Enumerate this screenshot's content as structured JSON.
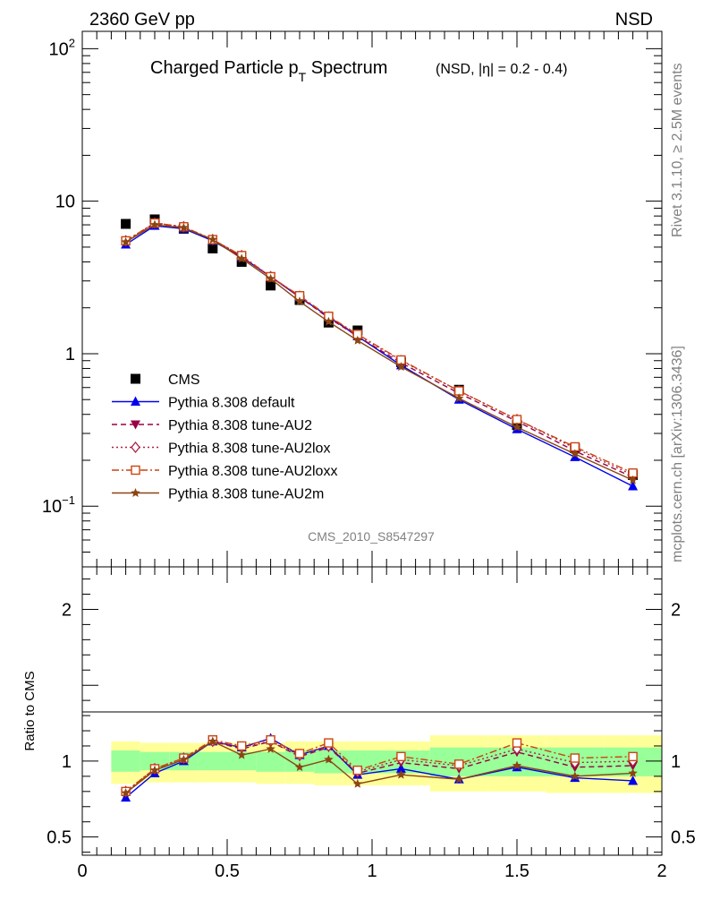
{
  "header": {
    "energy_label": "2360 GeV pp",
    "process_label": "NSD"
  },
  "side": {
    "rivet_label": "Rivet 3.1.10, ≥ 2.5M events",
    "mcplots_label": "mcplots.cern.ch [arXiv:1306.3436]"
  },
  "analysis_id": "CMS_2010_S8547297",
  "chart_data": [
    {
      "type": "scatter",
      "title_main": "Charged Particle p",
      "title_sub": "T",
      "title_tail": " Spectrum",
      "title_note": "(NSD, |η| = 0.2 - 0.4)",
      "xlabel": "",
      "ylabel": "",
      "log_y": true,
      "xlim": [
        0,
        2
      ],
      "ylim": [
        0.04,
        130
      ],
      "y_ticks": [
        {
          "label_base": "10",
          "label_exp": "−1"
        },
        {
          "label_base": "1",
          "label_exp": ""
        },
        {
          "label_base": "10",
          "label_exp": ""
        },
        {
          "label_base": "10",
          "label_exp": "2"
        }
      ],
      "y_tick_values": [
        0.1,
        1,
        10,
        100
      ],
      "legend_position": "bottom-left",
      "x": [
        0.15,
        0.25,
        0.35,
        0.45,
        0.55,
        0.65,
        0.75,
        0.85,
        0.95,
        1.1,
        1.3,
        1.5,
        1.7,
        1.9
      ],
      "series": [
        {
          "name": "CMS",
          "color": "#000000",
          "marker": "square",
          "line": "none",
          "values": [
            7.1,
            7.6,
            6.6,
            4.9,
            4.0,
            2.8,
            2.25,
            1.6,
            1.42,
            0.88,
            0.58,
            0.34,
            0.24,
            0.16
          ]
        },
        {
          "name": "Pythia 8.308 default",
          "color": "#0000ee",
          "marker": "triangle-up",
          "line": "solid",
          "values": [
            5.2,
            6.9,
            6.6,
            5.5,
            4.3,
            3.2,
            2.35,
            1.75,
            1.3,
            0.84,
            0.5,
            0.32,
            0.21,
            0.135
          ]
        },
        {
          "name": "Pythia 8.308 tune-AU2",
          "color": "#990044",
          "marker": "triangle-down",
          "line": "dashed",
          "values": [
            5.4,
            7.1,
            6.7,
            5.6,
            4.3,
            3.2,
            2.35,
            1.72,
            1.3,
            0.87,
            0.55,
            0.36,
            0.23,
            0.155
          ]
        },
        {
          "name": "Pythia 8.308 tune-AU2lox",
          "color": "#aa2244",
          "marker": "diamond-open",
          "line": "dotted",
          "values": [
            5.5,
            7.2,
            6.8,
            5.6,
            4.4,
            3.2,
            2.38,
            1.74,
            1.33,
            0.9,
            0.57,
            0.37,
            0.24,
            0.16
          ]
        },
        {
          "name": "Pythia 8.308 tune-AU2loxx",
          "color": "#cc4411",
          "marker": "square-open",
          "line": "dashdot",
          "values": [
            5.5,
            7.2,
            6.8,
            5.6,
            4.4,
            3.2,
            2.4,
            1.76,
            1.34,
            0.91,
            0.57,
            0.37,
            0.245,
            0.165
          ]
        },
        {
          "name": "Pythia 8.308 tune-AU2m",
          "color": "#8b4513",
          "marker": "star",
          "line": "solid",
          "values": [
            5.4,
            7.0,
            6.7,
            5.6,
            4.2,
            3.1,
            2.2,
            1.62,
            1.22,
            0.82,
            0.51,
            0.33,
            0.22,
            0.148
          ]
        }
      ]
    },
    {
      "type": "scatter",
      "title": "",
      "xlabel": "",
      "ylabel": "Ratio to CMS",
      "xlim": [
        0,
        2
      ],
      "ylim": [
        0.38,
        2.28
      ],
      "y_ticks_left": [
        "2",
        "1",
        "0.5"
      ],
      "y_ticks_right": [
        "2",
        "1",
        "0.5"
      ],
      "y_tick_values": [
        2,
        1,
        0.5
      ],
      "x_ticks": [
        "0",
        "0.5",
        "1",
        "1.5",
        "2"
      ],
      "x_tick_values": [
        0,
        0.5,
        1,
        1.5,
        2
      ],
      "reference_line": 1,
      "bands": {
        "edges": [
          0.1,
          0.2,
          0.3,
          0.4,
          0.5,
          0.6,
          0.7,
          0.8,
          0.9,
          1.0,
          1.2,
          1.4,
          1.6,
          1.8,
          2.0
        ],
        "outer_low": [
          0.85,
          0.86,
          0.86,
          0.86,
          0.86,
          0.85,
          0.85,
          0.84,
          0.84,
          0.84,
          0.8,
          0.8,
          0.79,
          0.79
        ],
        "outer_high": [
          1.13,
          1.12,
          1.12,
          1.12,
          1.12,
          1.12,
          1.13,
          1.13,
          1.13,
          1.13,
          1.17,
          1.17,
          1.17,
          1.17
        ],
        "inner_low": [
          0.93,
          0.94,
          0.94,
          0.94,
          0.94,
          0.93,
          0.93,
          0.92,
          0.92,
          0.92,
          0.9,
          0.9,
          0.9,
          0.9
        ],
        "inner_high": [
          1.07,
          1.06,
          1.06,
          1.06,
          1.06,
          1.06,
          1.07,
          1.07,
          1.07,
          1.07,
          1.09,
          1.09,
          1.09,
          1.09
        ],
        "outer_color": "#ffff99",
        "inner_color": "#99ff99"
      },
      "x": [
        0.15,
        0.25,
        0.35,
        0.45,
        0.55,
        0.65,
        0.75,
        0.85,
        0.95,
        1.1,
        1.3,
        1.5,
        1.7,
        1.9
      ],
      "series": [
        {
          "name": "Pythia 8.308 default",
          "color": "#0000ee",
          "marker": "triangle-up",
          "line": "solid",
          "values": [
            0.76,
            0.92,
            1.0,
            1.13,
            1.09,
            1.15,
            1.04,
            1.1,
            0.91,
            0.95,
            0.88,
            0.96,
            0.89,
            0.87
          ]
        },
        {
          "name": "Pythia 8.308 tune-AU2",
          "color": "#990044",
          "marker": "triangle-down",
          "line": "dashed",
          "values": [
            0.79,
            0.94,
            1.01,
            1.13,
            1.08,
            1.13,
            1.03,
            1.09,
            0.92,
            0.99,
            0.95,
            1.06,
            0.96,
            0.97
          ]
        },
        {
          "name": "Pythia 8.308 tune-AU2lox",
          "color": "#aa2244",
          "marker": "diamond-open",
          "line": "dotted",
          "values": [
            0.8,
            0.95,
            1.02,
            1.13,
            1.09,
            1.13,
            1.04,
            1.1,
            0.93,
            1.01,
            0.97,
            1.08,
            0.99,
            1.0
          ]
        },
        {
          "name": "Pythia 8.308 tune-AU2loxx",
          "color": "#cc4411",
          "marker": "square-open",
          "line": "dashdot",
          "values": [
            0.8,
            0.95,
            1.02,
            1.14,
            1.1,
            1.14,
            1.05,
            1.12,
            0.94,
            1.03,
            0.98,
            1.12,
            1.02,
            1.03
          ]
        },
        {
          "name": "Pythia 8.308 tune-AU2m",
          "color": "#8b4513",
          "marker": "star",
          "line": "solid",
          "values": [
            0.79,
            0.94,
            1.01,
            1.13,
            1.04,
            1.08,
            0.96,
            1.01,
            0.85,
            0.91,
            0.88,
            0.97,
            0.9,
            0.92
          ]
        }
      ]
    }
  ]
}
